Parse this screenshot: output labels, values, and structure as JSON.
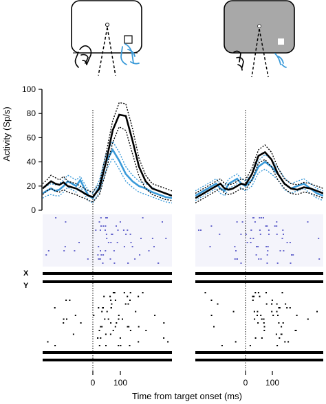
{
  "colors": {
    "black": "#000000",
    "blue": "#3a9ad9",
    "raster_blue": "#6666cc",
    "raster_bg": "#f4f4fb",
    "screen_gray": "#a8a8a8"
  },
  "icons": {
    "left_panel": [
      "white-screen-icon",
      "hand-icon",
      "fixation-dot-icon",
      "target-square-icon"
    ],
    "right_panel": [
      "gray-screen-icon",
      "hand-icon",
      "fixation-dot-icon",
      "target-square-icon"
    ]
  },
  "chart_data": {
    "type": "line",
    "ylabel": "Activity (Sp/s)",
    "xlabel": "Time from target onset (ms)",
    "ylim": [
      0,
      100
    ],
    "yticks": [
      "0",
      "20",
      "40",
      "60",
      "80",
      "100"
    ],
    "xlim": [
      -300,
      300
    ],
    "xticks": [
      "0",
      "100"
    ],
    "reference_line_at": 0,
    "row_labels": [
      "X",
      "Y"
    ],
    "panels": [
      {
        "name": "left",
        "series": [
          {
            "color": "black",
            "x": [
              -300,
              -275,
              -250,
              -225,
              -200,
              -175,
              -150,
              -125,
              -100,
              -75,
              -50,
              -25,
              0,
              25,
              50,
              75,
              100,
              125,
              150,
              175,
              200,
              225,
              250,
              275,
              300
            ],
            "mean": [
              18,
              21,
              24,
              22,
              21,
              23,
              20,
              19,
              18,
              16,
              14,
              12,
              11,
              18,
              40,
              66,
              79,
              78,
              58,
              36,
              24,
              18,
              16,
              14,
              12
            ],
            "upper": [
              22,
              25,
              29,
              27,
              25,
              28,
              24,
              23,
              22,
              20,
              18,
              16,
              15,
              22,
              47,
              74,
              89,
              88,
              68,
              43,
              29,
              22,
              20,
              18,
              16
            ],
            "lower": [
              13,
              16,
              18,
              16,
              15,
              17,
              15,
              14,
              13,
              11,
              10,
              8,
              7,
              13,
              32,
              56,
              69,
              66,
              47,
              28,
              18,
              13,
              11,
              9,
              8
            ]
          },
          {
            "color": "blue",
            "x": [
              -300,
              -275,
              -250,
              -225,
              -200,
              -175,
              -150,
              -125,
              -100,
              -75,
              -50,
              -25,
              0,
              25,
              50,
              75,
              100,
              125,
              150,
              175,
              200,
              225,
              250,
              275,
              300
            ],
            "mean": [
              14,
              16,
              18,
              16,
              17,
              20,
              24,
              22,
              20,
              25,
              18,
              12,
              10,
              20,
              40,
              50,
              41,
              30,
              24,
              20,
              18,
              15,
              13,
              11,
              10
            ],
            "upper": [
              18,
              20,
              22,
              21,
              22,
              25,
              29,
              27,
              25,
              28,
              22,
              16,
              14,
              25,
              46,
              57,
              48,
              36,
              29,
              24,
              22,
              19,
              16,
              14,
              12
            ],
            "lower": [
              10,
              12,
              13,
              12,
              12,
              15,
              19,
              17,
              15,
              20,
              13,
              8,
              6,
              15,
              33,
              43,
              34,
              24,
              19,
              15,
              13,
              11,
              9,
              7,
              6
            ]
          }
        ]
      },
      {
        "name": "right",
        "series": [
          {
            "color": "black",
            "x": [
              -300,
              -275,
              -250,
              -225,
              -200,
              -175,
              -150,
              -125,
              -100,
              -75,
              -50,
              -25,
              0,
              25,
              50,
              75,
              100,
              125,
              150,
              175,
              200,
              225,
              250,
              275,
              300
            ],
            "mean": [
              10,
              12,
              14,
              16,
              18,
              20,
              22,
              18,
              17,
              18,
              20,
              22,
              21,
              30,
              45,
              48,
              42,
              30,
              22,
              18,
              17,
              19,
              18,
              16,
              14
            ],
            "upper": [
              14,
              16,
              18,
              20,
              22,
              24,
              26,
              22,
              21,
              22,
              24,
              26,
              25,
              35,
              50,
              54,
              48,
              35,
              26,
              22,
              21,
              23,
              22,
              20,
              18
            ],
            "lower": [
              6,
              8,
              10,
              12,
              14,
              16,
              18,
              14,
              13,
              14,
              16,
              18,
              17,
              25,
              39,
              42,
              36,
              25,
              18,
              14,
              13,
              15,
              14,
              12,
              10
            ]
          },
          {
            "color": "blue",
            "x": [
              -300,
              -275,
              -250,
              -225,
              -200,
              -175,
              -150,
              -125,
              -100,
              -75,
              -50,
              -25,
              0,
              25,
              50,
              75,
              100,
              125,
              150,
              175,
              200,
              225,
              250,
              275,
              300
            ],
            "mean": [
              12,
              14,
              16,
              18,
              20,
              22,
              18,
              16,
              22,
              24,
              26,
              22,
              20,
              25,
              36,
              40,
              36,
              30,
              22,
              18,
              20,
              22,
              18,
              14,
              12
            ],
            "upper": [
              16,
              18,
              20,
              22,
              24,
              26,
              22,
              20,
              26,
              28,
              30,
              26,
              24,
              30,
              41,
              46,
              42,
              35,
              27,
              22,
              24,
              26,
              22,
              18,
              16
            ],
            "lower": [
              8,
              10,
              12,
              14,
              16,
              18,
              14,
              12,
              18,
              20,
              22,
              18,
              16,
              20,
              31,
              34,
              30,
              25,
              17,
              14,
              16,
              18,
              14,
              10,
              8
            ]
          }
        ]
      }
    ]
  }
}
